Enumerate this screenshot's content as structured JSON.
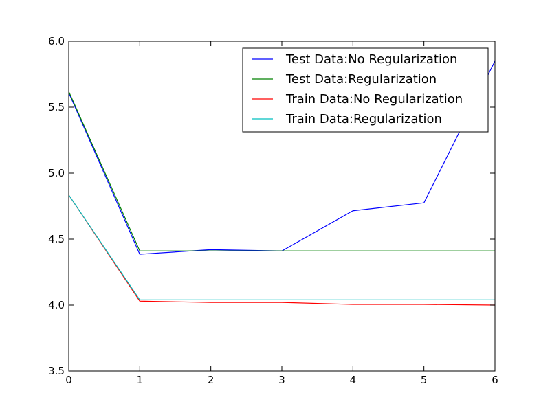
{
  "chart_data": {
    "type": "line",
    "title": "",
    "xlabel": "",
    "ylabel": "",
    "xlim": [
      0,
      6
    ],
    "ylim": [
      3.5,
      6.0
    ],
    "x": [
      0,
      1,
      2,
      3,
      4,
      5,
      6
    ],
    "xticks": [
      "0",
      "1",
      "2",
      "3",
      "4",
      "5",
      "6"
    ],
    "yticks": [
      "3.5",
      "4.0",
      "4.5",
      "5.0",
      "5.5",
      "6.0"
    ],
    "grid": false,
    "legend_position": "top-right",
    "series": [
      {
        "name": "Test Data:No Regularization",
        "color": "#0000ff",
        "values": [
          5.61,
          4.385,
          4.42,
          4.41,
          4.715,
          4.775,
          5.85
        ]
      },
      {
        "name": "Test Data:Regularization",
        "color": "#008000",
        "values": [
          5.62,
          4.41,
          4.41,
          4.41,
          4.41,
          4.41,
          4.41
        ]
      },
      {
        "name": "Train Data:No Regularization",
        "color": "#ff0000",
        "values": [
          4.835,
          4.03,
          4.02,
          4.02,
          4.005,
          4.005,
          4.0
        ]
      },
      {
        "name": "Train Data:Regularization",
        "color": "#00bfbf",
        "values": [
          4.835,
          4.04,
          4.04,
          4.04,
          4.04,
          4.04,
          4.04
        ]
      }
    ]
  }
}
